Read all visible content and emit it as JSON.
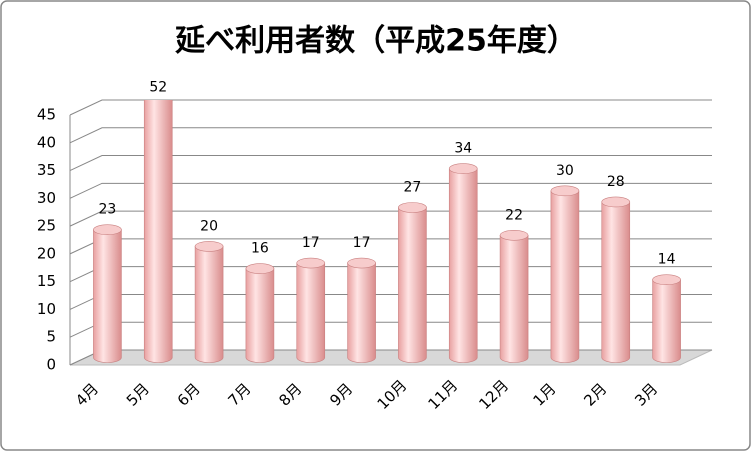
{
  "chart_data": {
    "type": "bar3d",
    "title": "延べ利用者数（平成25年度）",
    "categories": [
      "4月",
      "5月",
      "6月",
      "7月",
      "8月",
      "9月",
      "10月",
      "11月",
      "12月",
      "1月",
      "2月",
      "3月"
    ],
    "values": [
      23,
      52,
      20,
      16,
      17,
      17,
      27,
      34,
      22,
      30,
      28,
      14
    ],
    "color": "#f4b6b6",
    "ylim": [
      0,
      45
    ],
    "yticks": [
      0,
      5,
      10,
      15,
      20,
      25,
      30,
      35,
      40,
      45
    ],
    "grid": true
  }
}
